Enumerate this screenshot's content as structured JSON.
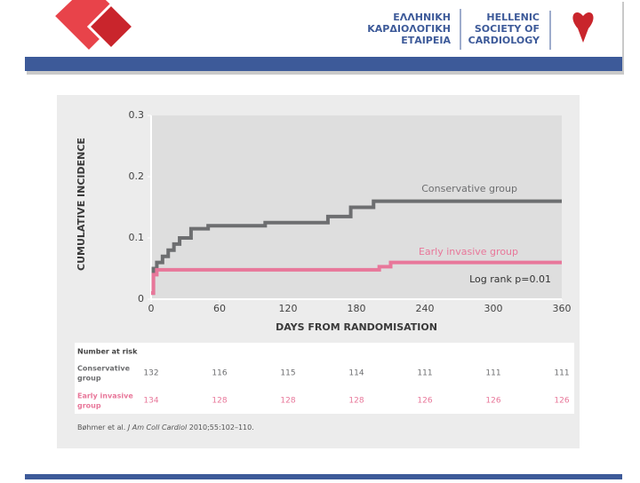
{
  "header": {
    "greek": [
      "ΕΛΛΗΝΙΚΗ",
      "ΚΑΡΔΙΟΛΟΓΙΚΗ",
      "ΕΤΑΙΡΕΙΑ"
    ],
    "english": [
      "HELLENIC",
      "SOCIETY OF",
      "CARDIOLOGY"
    ]
  },
  "chart_data": {
    "type": "line",
    "step": true,
    "y_label": "CUMULATIVE INCIDENCE",
    "x_label": "DAYS FROM RANDOMISATION",
    "xlim": [
      0,
      360
    ],
    "xticks": [
      0,
      60,
      120,
      180,
      240,
      300,
      360
    ],
    "ylim": [
      0,
      0.3
    ],
    "yticks": [
      0,
      0.1,
      0.2,
      0.3
    ],
    "series": [
      {
        "name": "Conservative group",
        "color": "#6d6e70",
        "x": [
          0,
          2,
          5,
          10,
          15,
          20,
          25,
          35,
          50,
          100,
          155,
          175,
          195,
          360
        ],
        "values": [
          0.01,
          0.05,
          0.06,
          0.07,
          0.08,
          0.09,
          0.1,
          0.115,
          0.12,
          0.125,
          0.135,
          0.15,
          0.16,
          0.16
        ]
      },
      {
        "name": "Early invasive group",
        "color": "#e8779a",
        "x": [
          0,
          2,
          5,
          200,
          210,
          360
        ],
        "values": [
          0.01,
          0.04,
          0.048,
          0.053,
          0.06,
          0.06
        ]
      }
    ],
    "annotation": "Log rank p=0.01"
  },
  "risk_table": {
    "title": "Number at risk",
    "rows": [
      {
        "label": [
          "Conservative",
          "group"
        ],
        "color": "#6d6e70",
        "values": [
          "132",
          "116",
          "115",
          "114",
          "111",
          "111",
          "111"
        ]
      },
      {
        "label": [
          "Early invasive",
          "group"
        ],
        "color": "#e8779a",
        "values": [
          "134",
          "128",
          "128",
          "128",
          "126",
          "126",
          "126"
        ]
      }
    ]
  },
  "citation": {
    "authors": "Bøhmer et al.",
    "journal": "J Am Coll Cardiol",
    "ref": "2010;55:102–110."
  }
}
